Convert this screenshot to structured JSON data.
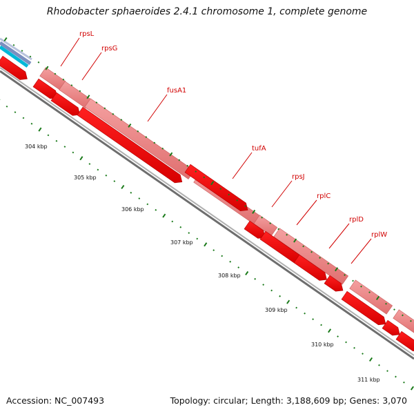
{
  "title": "Rhodobacter sphaeroides 2.4.1 chromosome 1, complete genome",
  "footer": {
    "accession": "Accession: NC_007493",
    "summary": "Topology: circular; Length: 3,188,609 bp; Genes: 3,070"
  },
  "colors": {
    "cds": "#ff0000",
    "gene": "#f08080",
    "backbone": "#888888",
    "tick": "#1a7a1a",
    "label": "#d10000",
    "blue": "#6a82b8",
    "cyan": "#00b8d8"
  },
  "genes": [
    {
      "name": "rpsL"
    },
    {
      "name": "rpsG"
    },
    {
      "name": "fusA1"
    },
    {
      "name": "tufA"
    },
    {
      "name": "rpsJ"
    },
    {
      "name": "rplC"
    },
    {
      "name": "rplD"
    },
    {
      "name": "rplW"
    }
  ],
  "scale_labels": [
    "304 kbp",
    "305 kbp",
    "306 kbp",
    "307 kbp",
    "308 kbp",
    "309 kbp",
    "310 kbp",
    "311 kbp"
  ]
}
